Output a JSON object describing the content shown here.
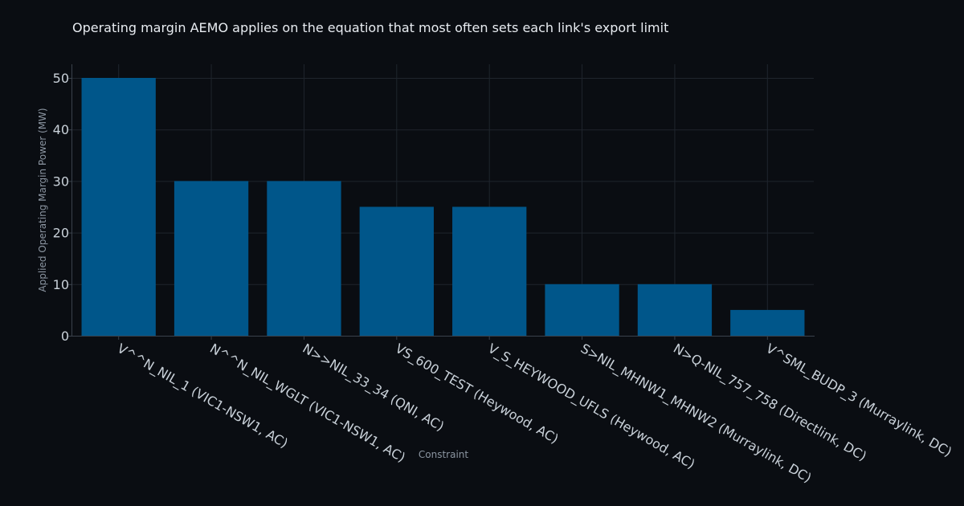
{
  "chart_data": {
    "type": "bar",
    "title": "Operating margin AEMO applies on the equation that most often sets each link's export limit",
    "xlabel": "Constraint",
    "ylabel": "Applied Operating Margin Power (MW)",
    "categories": [
      "V^^N_NIL_1 (VIC1-NSW1, AC)",
      "N^^N_NIL_WGLT (VIC1-NSW1, AC)",
      "N>>NIL_33_34 (QNI, AC)",
      "VS_600_TEST (Heywood, AC)",
      "V_S_HEYWOOD_UFLS (Heywood, AC)",
      "S>NIL_MHNW1_MHNW2 (Murraylink, DC)",
      "N>Q-NIL_757_758 (Directlink, DC)",
      "V^SML_BUDP_3 (Murraylink, DC)"
    ],
    "values": [
      50,
      30,
      30,
      25,
      25,
      10,
      10,
      5
    ],
    "ylim": [
      0,
      52.5
    ],
    "yticks": [
      0,
      10,
      20,
      30,
      40,
      50
    ],
    "grid": true,
    "bar_color": "#00568a"
  }
}
